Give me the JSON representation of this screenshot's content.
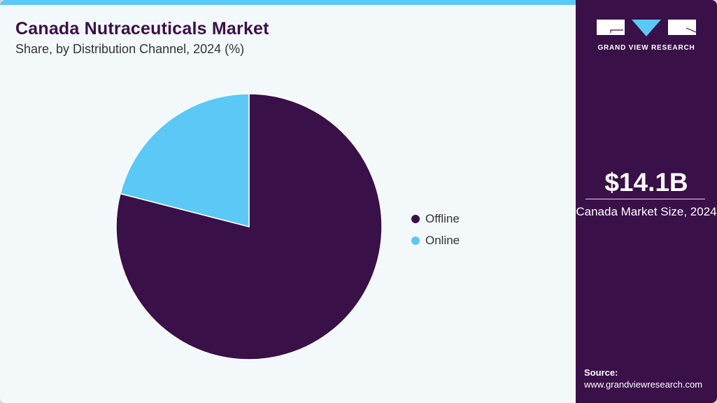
{
  "header": {
    "title": "Canada Nutraceuticals Market",
    "subtitle": "Share, by Distribution Channel, 2024 (%)"
  },
  "legend": {
    "items": [
      {
        "label": "Offline",
        "color": "#3a1048"
      },
      {
        "label": "Online",
        "color": "#5bc8f5"
      }
    ]
  },
  "sidebar": {
    "logo_text": "GRAND VIEW RESEARCH",
    "market_value": "$14.1B",
    "market_label": "Canada Market Size, 2024",
    "source_label": "Source:",
    "source_url": "www.grandviewresearch.com"
  },
  "colors": {
    "brand_dark": "#3a1048",
    "accent": "#5bc8f5",
    "background": "#f3f8fb"
  },
  "chart_data": {
    "type": "pie",
    "title": "Canada Nutraceuticals Market",
    "subtitle": "Share, by Distribution Channel, 2024 (%)",
    "categories": [
      "Offline",
      "Online"
    ],
    "values": [
      79,
      21
    ],
    "colors": [
      "#3a1048",
      "#5bc8f5"
    ],
    "start_angle_deg": 0,
    "direction": "clockwise",
    "legend_position": "right"
  }
}
